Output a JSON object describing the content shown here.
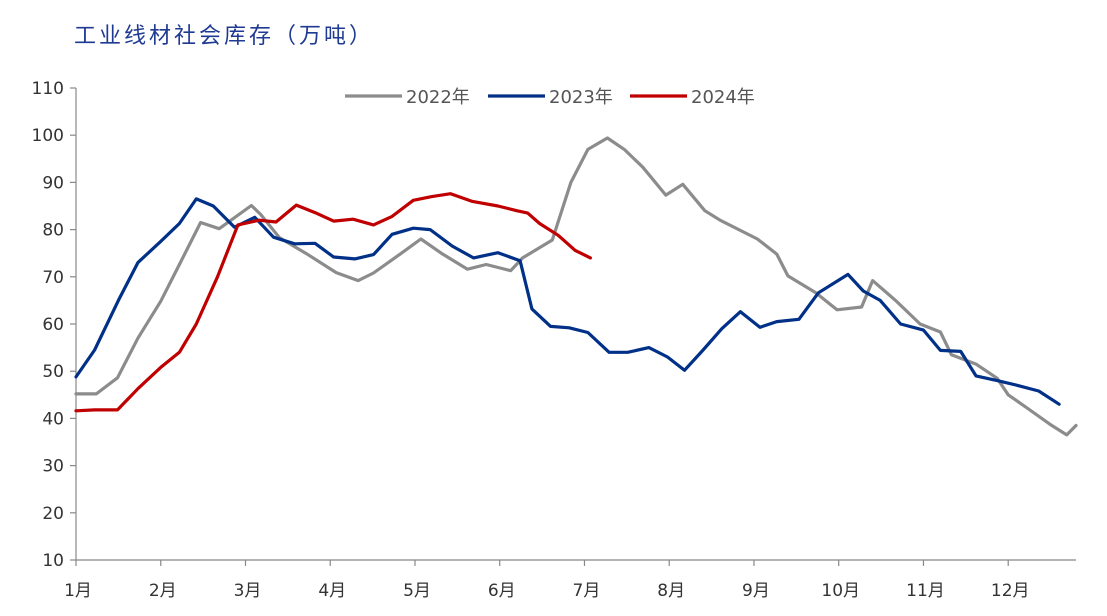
{
  "chart_data": {
    "type": "line",
    "title": "工业线材社会库存（万吨）",
    "ylim": [
      10,
      110
    ],
    "yticks": [
      "10",
      "20",
      "30",
      "40",
      "50",
      "60",
      "70",
      "80",
      "90",
      "100",
      "110"
    ],
    "xlim": [
      1,
      12.8
    ],
    "xticks": [
      {
        "label": "1月",
        "x": 1
      },
      {
        "label": "2月",
        "x": 2
      },
      {
        "label": "3月",
        "x": 3
      },
      {
        "label": "4月",
        "x": 4
      },
      {
        "label": "5月",
        "x": 5
      },
      {
        "label": "6月",
        "x": 6
      },
      {
        "label": "7月",
        "x": 7
      },
      {
        "label": "8月",
        "x": 8
      },
      {
        "label": "9月",
        "x": 9
      },
      {
        "label": "10月",
        "x": 10
      },
      {
        "label": "11月",
        "x": 11
      },
      {
        "label": "12月",
        "x": 12
      }
    ],
    "legend_position": "top-center",
    "grid": false,
    "series": [
      {
        "name": "2022年",
        "color": "#8c8c8c",
        "points": [
          [
            1.0,
            45.2
          ],
          [
            1.24,
            45.2
          ],
          [
            1.49,
            48.6
          ],
          [
            1.73,
            57
          ],
          [
            2.0,
            64.8
          ],
          [
            2.22,
            72.6
          ],
          [
            2.47,
            81.5
          ],
          [
            2.69,
            80.2
          ],
          [
            3.07,
            85.1
          ],
          [
            3.18,
            83.2
          ],
          [
            3.4,
            78.3
          ],
          [
            3.71,
            75
          ],
          [
            4.07,
            70.9
          ],
          [
            4.33,
            69.2
          ],
          [
            4.51,
            70.8
          ],
          [
            4.84,
            75
          ],
          [
            5.07,
            78
          ],
          [
            5.31,
            75
          ],
          [
            5.62,
            71.6
          ],
          [
            5.84,
            72.6
          ],
          [
            6.13,
            71.3
          ],
          [
            6.27,
            74
          ],
          [
            6.62,
            77.8
          ],
          [
            6.84,
            90
          ],
          [
            7.04,
            97
          ],
          [
            7.27,
            99.4
          ],
          [
            7.47,
            97
          ],
          [
            7.69,
            93.2
          ],
          [
            7.96,
            87.3
          ],
          [
            8.16,
            89.6
          ],
          [
            8.42,
            84
          ],
          [
            8.6,
            82
          ],
          [
            9.04,
            78
          ],
          [
            9.27,
            74.8
          ],
          [
            9.4,
            70.2
          ],
          [
            9.73,
            66.6
          ],
          [
            9.98,
            63
          ],
          [
            10.27,
            63.6
          ],
          [
            10.4,
            69.2
          ],
          [
            10.67,
            65
          ],
          [
            10.96,
            60
          ],
          [
            11.2,
            58.3
          ],
          [
            11.33,
            53.5
          ],
          [
            11.62,
            51.5
          ],
          [
            11.87,
            48.5
          ],
          [
            12.0,
            45
          ],
          [
            12.24,
            42
          ],
          [
            12.49,
            38.8
          ],
          [
            12.69,
            36.5
          ],
          [
            12.8,
            38.5
          ]
        ]
      },
      {
        "name": "2023年",
        "color": "#003087",
        "points": [
          [
            1.0,
            48.8
          ],
          [
            1.22,
            54.5
          ],
          [
            1.5,
            65
          ],
          [
            1.73,
            73
          ],
          [
            2.0,
            77.5
          ],
          [
            2.22,
            81.3
          ],
          [
            2.42,
            86.5
          ],
          [
            2.62,
            85
          ],
          [
            2.87,
            80.5
          ],
          [
            3.11,
            82.6
          ],
          [
            3.33,
            78.4
          ],
          [
            3.58,
            77
          ],
          [
            3.82,
            77.1
          ],
          [
            4.04,
            74.2
          ],
          [
            4.29,
            73.8
          ],
          [
            4.51,
            74.7
          ],
          [
            4.73,
            79
          ],
          [
            4.98,
            80.3
          ],
          [
            5.18,
            80
          ],
          [
            5.44,
            76.5
          ],
          [
            5.69,
            74
          ],
          [
            5.98,
            75.1
          ],
          [
            6.24,
            73.4
          ],
          [
            6.38,
            63.2
          ],
          [
            6.6,
            59.5
          ],
          [
            6.82,
            59.2
          ],
          [
            7.04,
            58.2
          ],
          [
            7.29,
            54
          ],
          [
            7.51,
            54
          ],
          [
            7.76,
            55
          ],
          [
            7.98,
            53
          ],
          [
            8.18,
            50.2
          ],
          [
            8.4,
            54.5
          ],
          [
            8.62,
            59
          ],
          [
            8.84,
            62.6
          ],
          [
            9.07,
            59.3
          ],
          [
            9.27,
            60.5
          ],
          [
            9.53,
            61
          ],
          [
            9.76,
            66.6
          ],
          [
            10.11,
            70.5
          ],
          [
            10.29,
            67
          ],
          [
            10.49,
            65
          ],
          [
            10.73,
            60
          ],
          [
            11.0,
            58.7
          ],
          [
            11.2,
            54.4
          ],
          [
            11.44,
            54.2
          ],
          [
            11.62,
            49
          ],
          [
            11.87,
            48
          ],
          [
            12.11,
            47
          ],
          [
            12.36,
            45.8
          ],
          [
            12.6,
            43
          ]
        ]
      },
      {
        "name": "2024年",
        "color": "#c00000",
        "points": [
          [
            1.0,
            41.6
          ],
          [
            1.22,
            41.8
          ],
          [
            1.49,
            41.8
          ],
          [
            1.73,
            46.3
          ],
          [
            2.0,
            50.8
          ],
          [
            2.22,
            54
          ],
          [
            2.42,
            60
          ],
          [
            2.67,
            70
          ],
          [
            2.91,
            81
          ],
          [
            3.16,
            82
          ],
          [
            3.36,
            81.6
          ],
          [
            3.6,
            85.2
          ],
          [
            3.82,
            83.6
          ],
          [
            4.04,
            81.8
          ],
          [
            4.27,
            82.2
          ],
          [
            4.51,
            81
          ],
          [
            4.73,
            82.8
          ],
          [
            4.98,
            86.2
          ],
          [
            5.2,
            87
          ],
          [
            5.42,
            87.6
          ],
          [
            5.67,
            86
          ],
          [
            5.98,
            85
          ],
          [
            6.2,
            84
          ],
          [
            6.33,
            83.5
          ],
          [
            6.47,
            81.3
          ],
          [
            6.69,
            78.8
          ],
          [
            6.89,
            75.6
          ],
          [
            7.07,
            74
          ]
        ]
      }
    ]
  }
}
